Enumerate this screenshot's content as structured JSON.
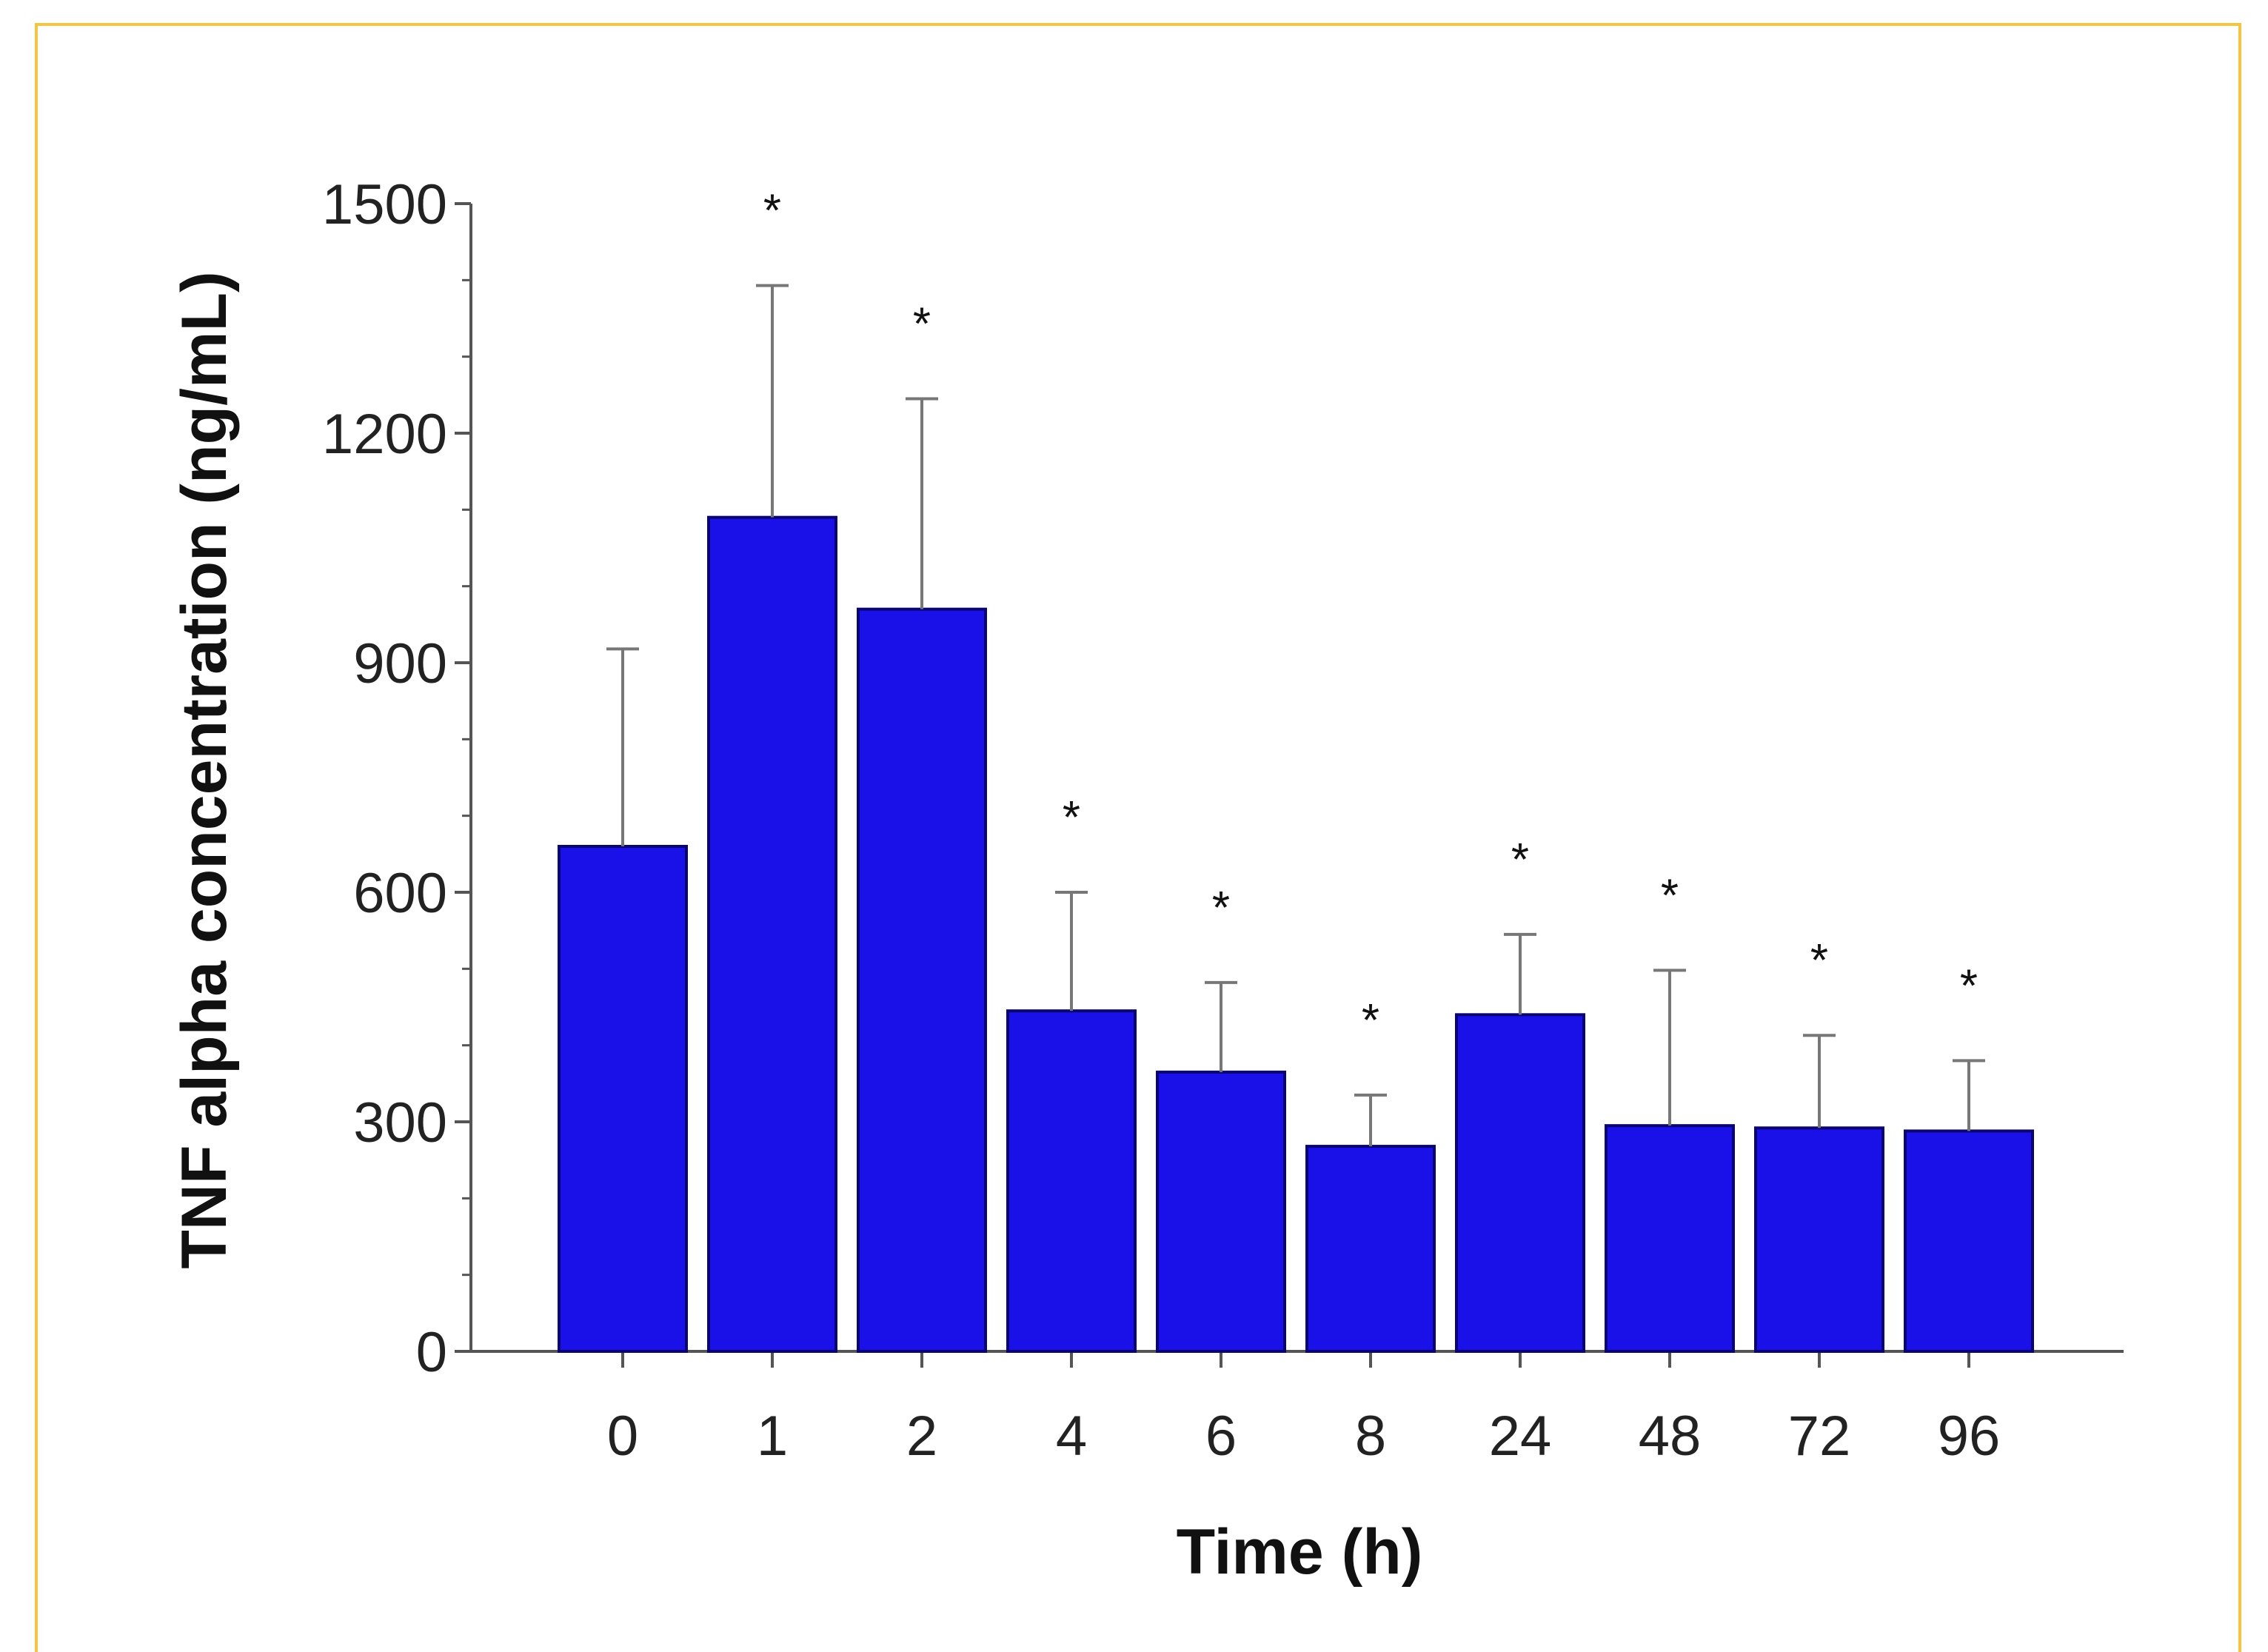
{
  "chart_data": {
    "type": "bar",
    "categories": [
      "0",
      "1",
      "2",
      "4",
      "6",
      "8",
      "24",
      "48",
      "72",
      "96"
    ],
    "values": [
      660,
      1090,
      970,
      445,
      365,
      268,
      440,
      295,
      292,
      288
    ],
    "error_upper": [
      918,
      1393,
      1245,
      600,
      482,
      335,
      545,
      498,
      413,
      380
    ],
    "significance": [
      "",
      "*",
      "*",
      "*",
      "*",
      "*",
      "*",
      "*",
      "*",
      "*"
    ],
    "xlabel": "Time (h)",
    "ylabel": "TNF alpha concentration (ng/mL)",
    "ylim": [
      0,
      1500
    ],
    "yticks": [
      "0",
      "300",
      "600",
      "900",
      "1200",
      "1500"
    ],
    "grid": false,
    "colors": {
      "bar": "#1a10e8",
      "bar_edge": "#0b0570",
      "axis": "#555555",
      "error_bar": "#777777",
      "frame": "#f5c542"
    }
  }
}
